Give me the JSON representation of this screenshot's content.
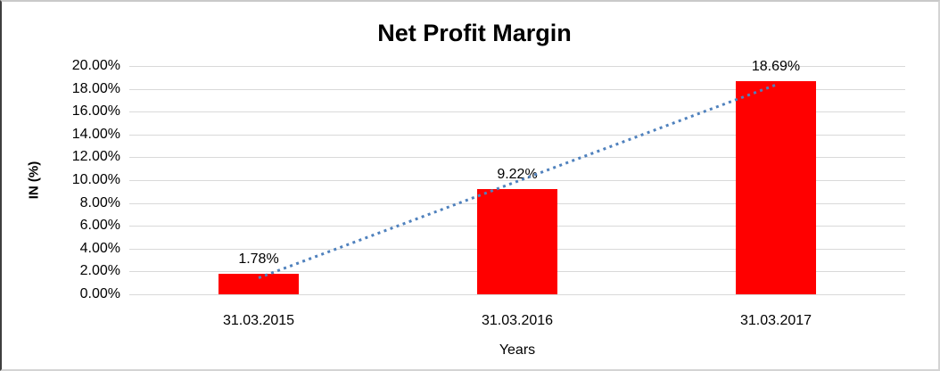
{
  "chart_data": {
    "type": "bar",
    "title": "Net Profit Margin",
    "xlabel": "Years",
    "ylabel": "IN (%)",
    "categories": [
      "31.03.2015",
      "31.03.2016",
      "31.03.2017"
    ],
    "values": [
      1.78,
      9.22,
      18.69
    ],
    "value_labels": [
      "1.78%",
      "9.22%",
      "18.69%"
    ],
    "ylim": [
      0,
      20
    ],
    "ytick_step": 2,
    "ytick_labels_top_to_bottom": [
      "20.00%",
      "18.00%",
      "16.00%",
      "14.00%",
      "12.00%",
      "10.00%",
      "8.00%",
      "6.00%",
      "4.00%",
      "2.00%",
      "0.00%"
    ],
    "grid": true,
    "legend": "none",
    "bar_color": "#FF0000",
    "gridline_color": "#D9D9D9",
    "text_color": "#000000",
    "trendline": {
      "type": "linear",
      "style": "dotted",
      "color": "#4F81BD",
      "start_pct": 1.44,
      "end_pct": 18.35
    }
  }
}
